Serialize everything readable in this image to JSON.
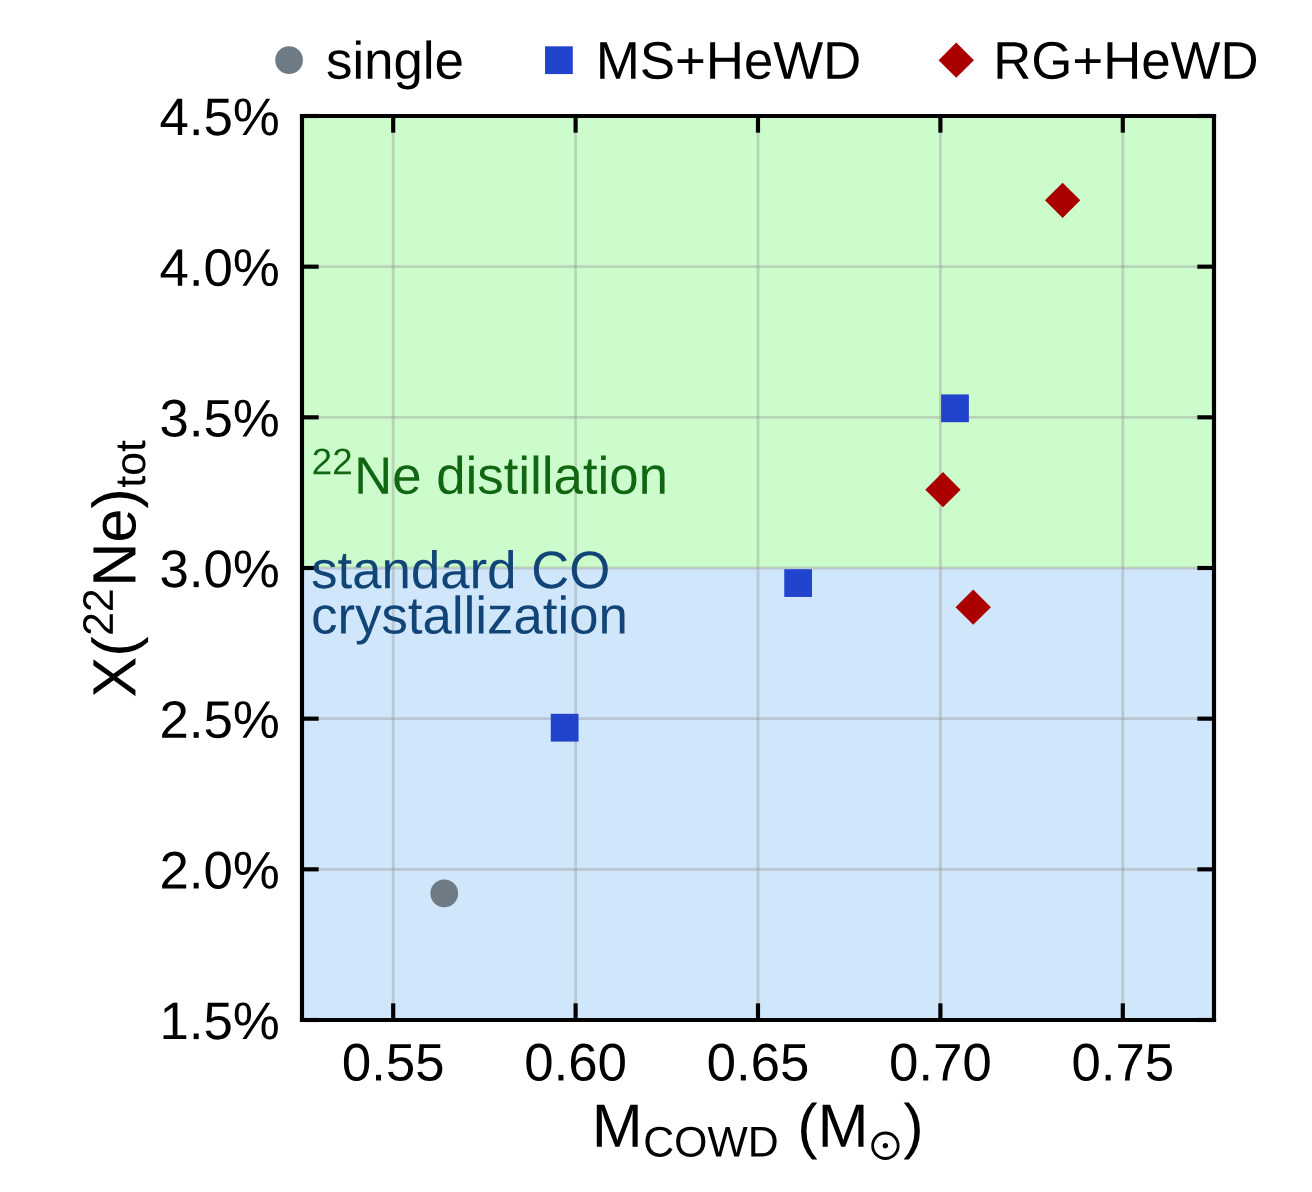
{
  "chart_data": {
    "type": "scatter",
    "xlabel": "M$_{COWD}$ (M$_{⊙}$)",
    "ylabel": "X($^{22}$Ne)$_{tot}$",
    "series": [
      {
        "name": "single",
        "color": "#6e7b85",
        "marker": "circle",
        "x": [
          0.564
        ],
        "values": [
          1.92
        ]
      },
      {
        "name": "MS+HeWD",
        "color": "#2244cc",
        "marker": "square",
        "x": [
          0.597,
          0.661,
          0.704
        ],
        "values": [
          2.47,
          2.95,
          3.53
        ]
      },
      {
        "name": "RG+HeWD",
        "color": "#aa0000",
        "marker": "diamond",
        "x": [
          0.7335,
          0.7007,
          0.709
        ],
        "values": [
          4.22,
          3.26,
          2.87
        ]
      }
    ],
    "xlim": [
      0.525,
      0.775
    ],
    "xticks": [
      0.55,
      {
        "value": 0.6,
        "label": "0.60"
      },
      0.65,
      {
        "value": 0.7,
        "label": "0.70"
      },
      0.75
    ],
    "ylim": [
      1.5,
      4.5
    ],
    "yticks": [
      {
        "value": 1.5,
        "label": "1.5%"
      },
      {
        "value": 2.0,
        "label": "2.0%"
      },
      {
        "value": 2.5,
        "label": "2.5%"
      },
      {
        "value": 3.0,
        "label": "3.0%"
      },
      {
        "value": 3.5,
        "label": "3.5%"
      },
      {
        "value": 4.0,
        "label": "4.0%"
      },
      {
        "value": 4.5,
        "label": "4.5%"
      }
    ],
    "bands": [
      {
        "axis": "y",
        "from": 3.0,
        "to": 4.5,
        "color": "#ccfccc"
      },
      {
        "axis": "y",
        "from": 1.5,
        "to": 3.0,
        "color": "#d0e6fa"
      }
    ],
    "annotations": [
      "$^{22}$Ne distillation",
      "standard CO\ncrystallization"
    ],
    "grid": true,
    "legend": "top"
  }
}
